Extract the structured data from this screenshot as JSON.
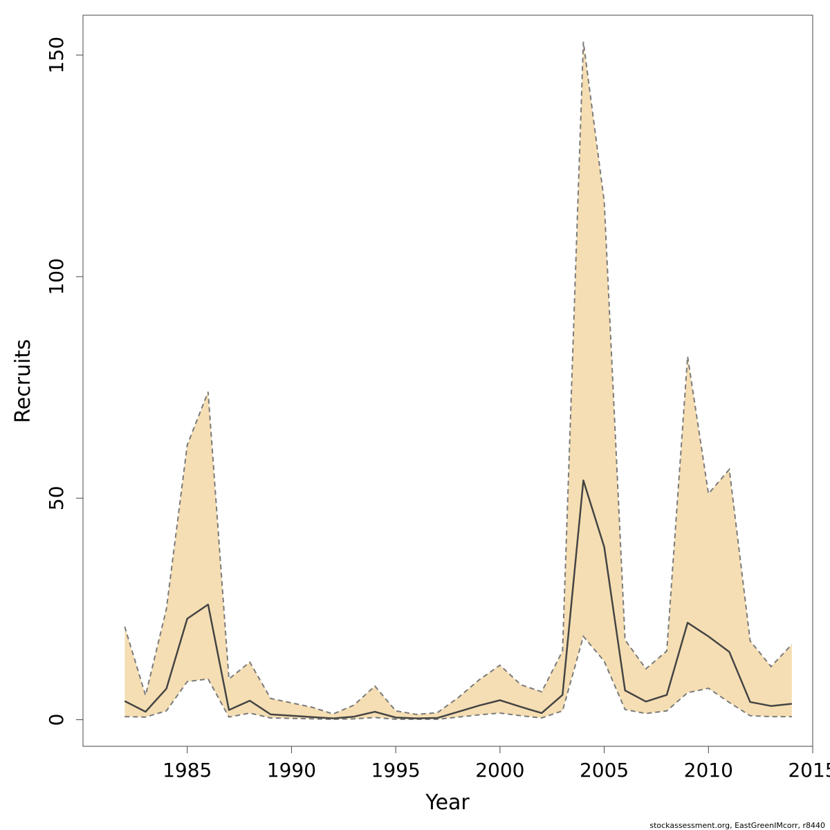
{
  "chart_data": {
    "type": "area",
    "title": "",
    "xlabel": "Year",
    "ylabel": "Recruits",
    "xlim": [
      1980,
      2015
    ],
    "ylim": [
      -6,
      159
    ],
    "x_ticks": [
      1985,
      1990,
      1995,
      2000,
      2005,
      2010,
      2015
    ],
    "y_ticks": [
      0,
      50,
      100,
      150
    ],
    "grid": false,
    "legend": "none",
    "x": [
      1982,
      1983,
      1984,
      1985,
      1986,
      1987,
      1988,
      1989,
      1990,
      1991,
      1992,
      1993,
      1994,
      1995,
      1996,
      1997,
      1998,
      1999,
      2000,
      2001,
      2002,
      2003,
      2004,
      2005,
      2006,
      2007,
      2008,
      2009,
      2010,
      2011,
      2012,
      2013,
      2014
    ],
    "series": [
      {
        "values": [
          4.2,
          1.8,
          7.0,
          22.8,
          26.0,
          2.2,
          4.3,
          1.2,
          0.9,
          0.6,
          0.3,
          0.7,
          1.8,
          0.5,
          0.3,
          0.4,
          1.8,
          3.2,
          4.4,
          2.9,
          1.5,
          5.6,
          54.0,
          39.0,
          6.6,
          4.1,
          5.6,
          21.9,
          18.8,
          15.3,
          4.0,
          3.1,
          3.6
        ]
      }
    ],
    "band_lower": [
      0.7,
      0.6,
      2.0,
      8.6,
      9.2,
      0.6,
      1.5,
      0.4,
      0.3,
      0.2,
      0.1,
      0.2,
      0.5,
      0.1,
      0.1,
      0.1,
      0.6,
      1.1,
      1.5,
      0.9,
      0.4,
      2.0,
      18.8,
      13.2,
      2.3,
      1.4,
      2.0,
      6.1,
      7.1,
      3.9,
      0.9,
      0.7,
      0.7
    ],
    "band_upper": [
      21.0,
      5.5,
      25.0,
      62.0,
      74.0,
      9.2,
      13.0,
      4.8,
      3.8,
      2.8,
      1.3,
      3.3,
      7.6,
      2.0,
      1.2,
      1.6,
      5.0,
      9.0,
      12.3,
      7.9,
      6.3,
      15.5,
      153.0,
      117.0,
      18.0,
      11.5,
      15.5,
      82.0,
      51.0,
      56.5,
      17.8,
      12.0,
      17.0
    ],
    "colors": {
      "band_fill": "#f5deb3",
      "band_edge": "#7a7a7a",
      "line": "#444444",
      "axis": "#444444"
    }
  },
  "footnote": "stockassessment.org, EastGreenIMcorr, r8440"
}
